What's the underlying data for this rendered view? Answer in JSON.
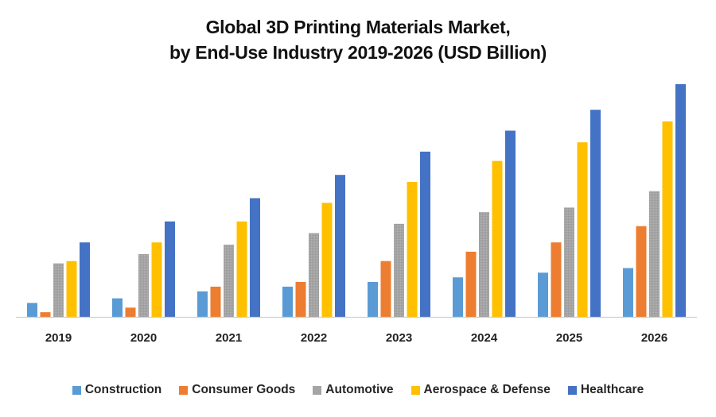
{
  "chart_data": {
    "type": "bar",
    "title": [
      "Global 3D Printing Materials Market,",
      "by End-Use Industry 2019-2026 (USD Billion)"
    ],
    "xlabel": "",
    "ylabel": "",
    "y_axis_shown": false,
    "value_scale_note": "relative units estimated from bar heights (no y-axis in image)",
    "ylim": [
      0,
      10.1
    ],
    "grid": false,
    "legend_position": "bottom",
    "categories": [
      "2019",
      "2020",
      "2021",
      "2022",
      "2023",
      "2024",
      "2025",
      "2026"
    ],
    "series": [
      {
        "name": "Construction",
        "color": "#5B9BD5",
        "values": [
          0.6,
          0.8,
          1.1,
          1.3,
          1.5,
          1.7,
          1.9,
          2.1
        ]
      },
      {
        "name": "Consumer Goods",
        "color": "#ED7D31",
        "values": [
          0.2,
          0.4,
          1.3,
          1.5,
          2.4,
          2.8,
          3.2,
          3.9
        ]
      },
      {
        "name": "Automotive",
        "color": "#A5A5A5",
        "values": [
          2.3,
          2.7,
          3.1,
          3.6,
          4.0,
          4.5,
          4.7,
          5.4
        ]
      },
      {
        "name": "Aerospace & Defense",
        "color": "#FFC000",
        "values": [
          2.4,
          3.2,
          4.1,
          4.9,
          5.8,
          6.7,
          7.5,
          8.4
        ]
      },
      {
        "name": "Healthcare",
        "color": "#4472C4",
        "values": [
          3.2,
          4.1,
          5.1,
          6.1,
          7.1,
          8.0,
          8.9,
          10.0
        ]
      }
    ]
  }
}
